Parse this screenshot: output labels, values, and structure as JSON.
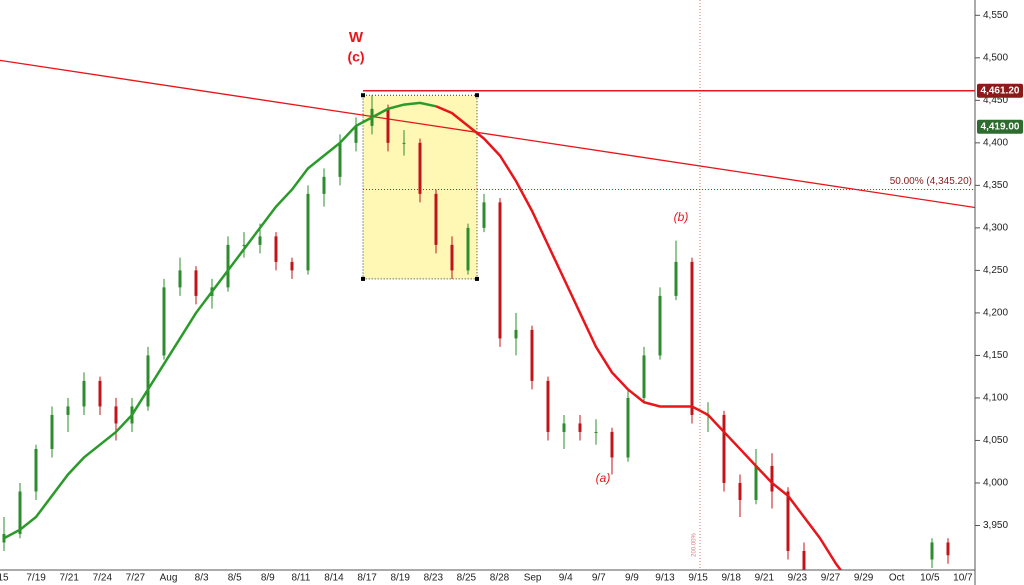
{
  "chart_data": {
    "type": "candlestick",
    "ylim": [
      3880,
      4568
    ],
    "yticks": [
      {
        "value": 3950,
        "label": "3,950"
      },
      {
        "value": 4000,
        "label": "4,000"
      },
      {
        "value": 4050,
        "label": "4,050"
      },
      {
        "value": 4100,
        "label": "4,100"
      },
      {
        "value": 4150,
        "label": "4,150"
      },
      {
        "value": 4200,
        "label": "4,200"
      },
      {
        "value": 4250,
        "label": "4,250"
      },
      {
        "value": 4300,
        "label": "4,300"
      },
      {
        "value": 4350,
        "label": "4,350"
      },
      {
        "value": 4400,
        "label": "4,400"
      },
      {
        "value": 4450,
        "label": "4,450"
      },
      {
        "value": 4500,
        "label": "4,500"
      },
      {
        "value": 4550,
        "label": "4,550"
      }
    ],
    "x_labels": [
      "15",
      "7/19",
      "7/21",
      "7/24",
      "7/27",
      "Aug",
      "8/3",
      "8/5",
      "8/9",
      "8/11",
      "8/14",
      "8/17",
      "8/19",
      "8/23",
      "8/25",
      "8/28",
      "Sep",
      "9/4",
      "9/7",
      "9/9",
      "9/13",
      "9/15",
      "9/18",
      "9/21",
      "9/23",
      "9/27",
      "9/29",
      "Oct",
      "10/5",
      "10/7"
    ],
    "up_color": "#2e8b2e",
    "down_color": "#c0141a",
    "candles": [
      [
        3930,
        3960,
        3920,
        3940
      ],
      [
        3940,
        4000,
        3935,
        3990
      ],
      [
        3990,
        4045,
        3980,
        4040
      ],
      [
        4040,
        4090,
        4030,
        4080
      ],
      [
        4080,
        4100,
        4060,
        4090
      ],
      [
        4090,
        4130,
        4080,
        4120
      ],
      [
        4120,
        4125,
        4080,
        4090
      ],
      [
        4090,
        4100,
        4050,
        4070
      ],
      [
        4070,
        4100,
        4060,
        4090
      ],
      [
        4090,
        4160,
        4085,
        4150
      ],
      [
        4150,
        4240,
        4145,
        4230
      ],
      [
        4230,
        4265,
        4220,
        4250
      ],
      [
        4250,
        4255,
        4210,
        4220
      ],
      [
        4220,
        4240,
        4205,
        4230
      ],
      [
        4230,
        4290,
        4225,
        4280
      ],
      [
        4280,
        4295,
        4265,
        4280
      ],
      [
        4280,
        4305,
        4270,
        4290
      ],
      [
        4290,
        4295,
        4250,
        4260
      ],
      [
        4260,
        4265,
        4240,
        4250
      ],
      [
        4250,
        4350,
        4245,
        4340
      ],
      [
        4340,
        4370,
        4325,
        4360
      ],
      [
        4360,
        4410,
        4350,
        4400
      ],
      [
        4400,
        4430,
        4390,
        4420
      ],
      [
        4420,
        4456,
        4410,
        4440
      ],
      [
        4440,
        4445,
        4390,
        4400
      ],
      [
        4400,
        4415,
        4385,
        4400
      ],
      [
        4400,
        4405,
        4330,
        4340
      ],
      [
        4340,
        4345,
        4270,
        4280
      ],
      [
        4280,
        4290,
        4240,
        4250
      ],
      [
        4250,
        4305,
        4245,
        4300
      ],
      [
        4300,
        4340,
        4295,
        4330
      ],
      [
        4330,
        4335,
        4160,
        4170
      ],
      [
        4170,
        4200,
        4150,
        4180
      ],
      [
        4180,
        4185,
        4110,
        4120
      ],
      [
        4120,
        4125,
        4050,
        4060
      ],
      [
        4060,
        4080,
        4040,
        4070
      ],
      [
        4070,
        4080,
        4050,
        4060
      ],
      [
        4060,
        4075,
        4045,
        4060
      ],
      [
        4060,
        4065,
        4010,
        4030
      ],
      [
        4030,
        4110,
        4025,
        4100
      ],
      [
        4100,
        4160,
        4095,
        4150
      ],
      [
        4150,
        4230,
        4145,
        4220
      ],
      [
        4220,
        4285,
        4215,
        4260
      ],
      [
        4260,
        4265,
        4070,
        4080
      ],
      [
        4080,
        4095,
        4060,
        4080
      ],
      [
        4080,
        4085,
        3990,
        4000
      ],
      [
        4000,
        4010,
        3960,
        3980
      ],
      [
        3980,
        4040,
        3975,
        4020
      ],
      [
        4020,
        4035,
        3970,
        3990
      ],
      [
        3990,
        3995,
        3910,
        3920
      ],
      [
        3920,
        3930,
        3885,
        3895
      ],
      null,
      null,
      null,
      null,
      null,
      null,
      null,
      [
        3910,
        3935,
        3900,
        3930
      ],
      [
        3930,
        3935,
        3905,
        3915
      ]
    ],
    "series": [
      {
        "color": "#2a9a2a",
        "values": [
          3935,
          3945,
          3960,
          3985,
          4010,
          4030,
          4045,
          4060,
          4080,
          4110,
          4140,
          4170,
          4200,
          4225,
          4250,
          4275,
          4300,
          4325,
          4345,
          4370,
          4385,
          4400,
          4420,
          4430,
          4440,
          4445,
          4447,
          4443,
          null,
          null,
          null,
          null,
          null,
          null,
          null,
          null,
          null,
          null,
          null,
          null,
          null,
          null,
          null,
          null,
          null,
          null,
          null,
          null,
          null,
          null,
          null,
          null,
          null,
          null,
          null,
          null,
          null,
          null,
          null,
          null
        ]
      },
      {
        "color": "#e8151b",
        "values": [
          null,
          null,
          null,
          null,
          null,
          null,
          null,
          null,
          null,
          null,
          null,
          null,
          null,
          null,
          null,
          null,
          null,
          null,
          null,
          null,
          null,
          null,
          null,
          null,
          null,
          null,
          null,
          4443,
          4435,
          4420,
          4405,
          4385,
          4355,
          4320,
          4280,
          4240,
          4200,
          4160,
          4130,
          4110,
          4095,
          4090,
          4090,
          4090,
          4080,
          4060,
          4040,
          4020,
          4000,
          3985,
          3960,
          3935,
          3905,
          3880,
          null,
          null,
          null,
          null,
          null,
          null
        ]
      }
    ],
    "trendline": [
      4497,
      4324
    ],
    "trendline_color": "#e8151b",
    "resistance": {
      "value": 4461.2,
      "label": "4,461.20",
      "color": "#8b1a1a"
    },
    "last_price": {
      "value": 4419,
      "label": "4,419.00",
      "color": "#2e6b2e"
    },
    "fib": {
      "value": 4345.2,
      "label": "50.00% (4,345.20)"
    },
    "box": {
      "top": 4456,
      "bottom": 4240
    },
    "annotations": [
      "W",
      "(c)",
      "(a)",
      "(b)"
    ],
    "vline_label": "200.00%"
  }
}
